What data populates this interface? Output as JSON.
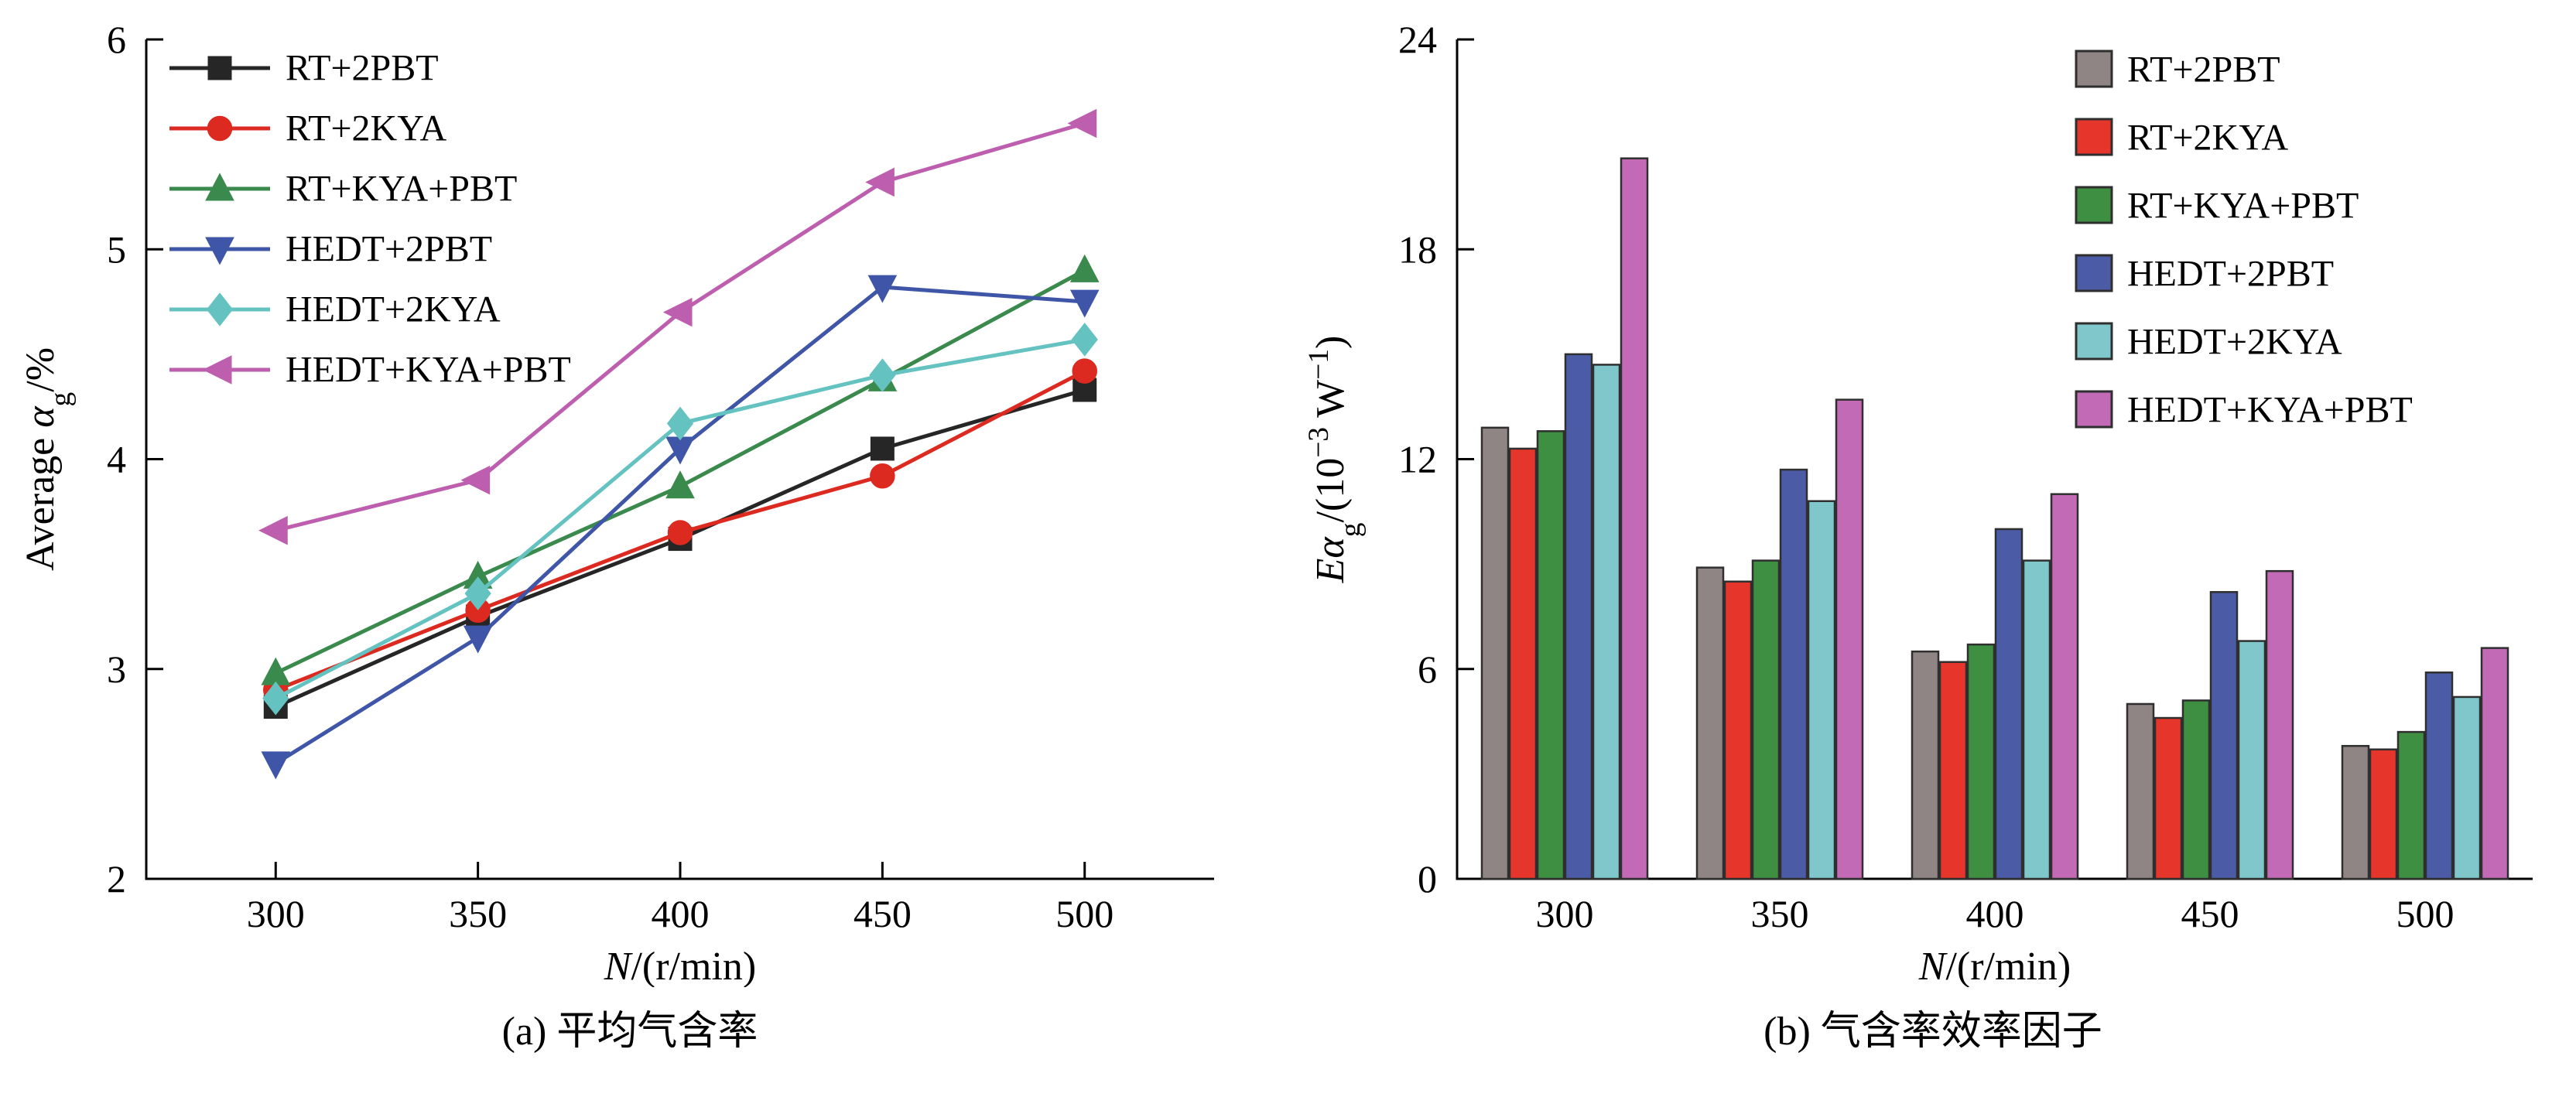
{
  "captions": {
    "a": "(a) 平均气含率",
    "b": "(b) 气含率效率因子"
  },
  "chart_data": [
    {
      "type": "line",
      "panel": "a",
      "title": "(a) 平均气含率",
      "xlabel": "N/(r/min)",
      "ylabel": "Average αg/%",
      "xlabel_parts": [
        {
          "t": "N",
          "style": "italic"
        },
        {
          "t": "/(r/min)"
        }
      ],
      "ylabel_parts": [
        {
          "t": "Average "
        },
        {
          "t": "α",
          "style": "italic"
        },
        {
          "t": "g",
          "sub": true
        },
        {
          "t": "/%"
        }
      ],
      "x": [
        300,
        350,
        400,
        450,
        500
      ],
      "xlim": [
        268,
        532
      ],
      "ylim": [
        2,
        6
      ],
      "yticks": [
        2,
        3,
        4,
        5,
        6
      ],
      "legend_position": "top-left",
      "grid": false,
      "series": [
        {
          "name": "RT+2PBT",
          "marker": "square",
          "color": "#262626",
          "values": [
            2.82,
            3.25,
            3.62,
            4.05,
            4.33
          ]
        },
        {
          "name": "RT+2KYA",
          "marker": "circle",
          "color": "#dd2a20",
          "values": [
            2.9,
            3.28,
            3.65,
            3.92,
            4.42
          ]
        },
        {
          "name": "RT+KYA+PBT",
          "marker": "triangle-up",
          "color": "#3a8a4d",
          "values": [
            2.98,
            3.44,
            3.87,
            4.38,
            4.9
          ]
        },
        {
          "name": "HEDT+2PBT",
          "marker": "triangle-down",
          "color": "#3f55a7",
          "values": [
            2.55,
            3.15,
            4.05,
            4.82,
            4.75
          ]
        },
        {
          "name": "HEDT+2KYA",
          "marker": "diamond",
          "color": "#64c3c1",
          "values": [
            2.86,
            3.36,
            4.17,
            4.4,
            4.57
          ]
        },
        {
          "name": "HEDT+KYA+PBT",
          "marker": "triangle-left",
          "color": "#bd5fae",
          "values": [
            3.66,
            3.9,
            4.7,
            5.32,
            5.6
          ]
        }
      ]
    },
    {
      "type": "bar",
      "panel": "b",
      "title": "(b) 气含率效率因子",
      "xlabel": "N/(r/min)",
      "ylabel": "Eαg/(10−3 W−1)",
      "xlabel_parts": [
        {
          "t": "N",
          "style": "italic"
        },
        {
          "t": "/(r/min)"
        }
      ],
      "ylabel_parts": [
        {
          "t": "E",
          "style": "italic"
        },
        {
          "t": "α",
          "style": "italic"
        },
        {
          "t": "g",
          "sub": true
        },
        {
          "t": "/(10"
        },
        {
          "t": "−3",
          "sup": true
        },
        {
          "t": " W"
        },
        {
          "t": "−1",
          "sup": true
        },
        {
          "t": ")"
        }
      ],
      "categories": [
        "300",
        "350",
        "400",
        "450",
        "500"
      ],
      "ylim": [
        0,
        24
      ],
      "yticks": [
        0,
        6,
        12,
        18,
        24
      ],
      "legend_position": "top-right",
      "grid": false,
      "bar_edge": "#2f2f2f",
      "series": [
        {
          "name": "RT+2PBT",
          "color": "#8f8584",
          "values": [
            12.9,
            8.9,
            6.5,
            5.0,
            3.8
          ]
        },
        {
          "name": "RT+2KYA",
          "color": "#e6352b",
          "values": [
            12.3,
            8.5,
            6.2,
            4.6,
            3.7
          ]
        },
        {
          "name": "RT+KYA+PBT",
          "color": "#3f8f43",
          "values": [
            12.8,
            9.1,
            6.7,
            5.1,
            4.2
          ]
        },
        {
          "name": "HEDT+2PBT",
          "color": "#4c5ba6",
          "values": [
            15.0,
            11.7,
            10.0,
            8.2,
            5.9
          ]
        },
        {
          "name": "HEDT+2KYA",
          "color": "#7fc7ca",
          "values": [
            14.7,
            10.8,
            9.1,
            6.8,
            5.2
          ]
        },
        {
          "name": "HEDT+KYA+PBT",
          "color": "#c26ab5",
          "values": [
            20.6,
            13.7,
            11.0,
            8.8,
            6.6
          ]
        }
      ]
    }
  ]
}
